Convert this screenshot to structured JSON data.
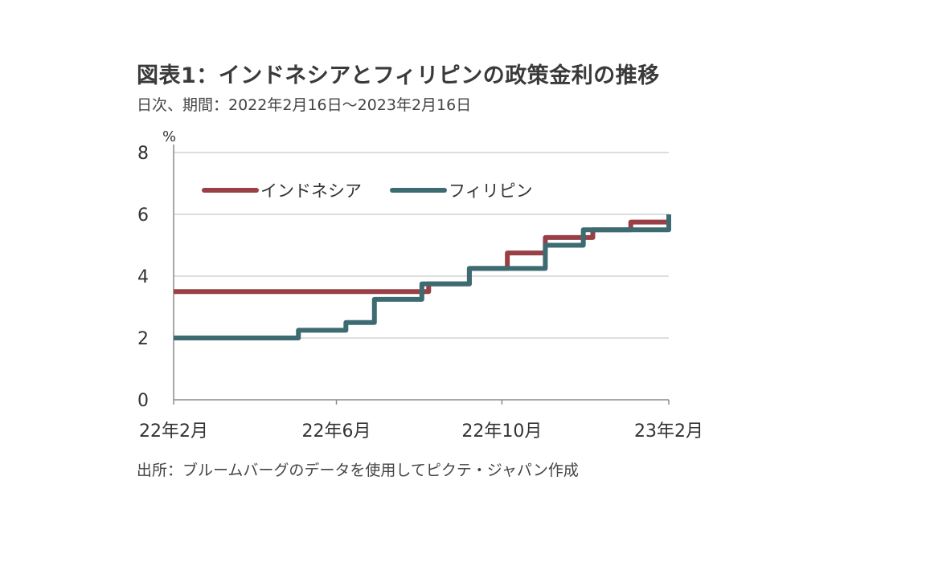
{
  "chart_data": {
    "type": "line",
    "title": "図表1：インドネシアとフィリピンの政策金利の推移",
    "subtitle": "日次、期間：2022年2月16日～2023年2月16日",
    "source": "出所：ブルームバーグのデータを使用してピクテ・ジャパン作成",
    "ylabel": "%",
    "ylim": [
      0,
      8
    ],
    "yticks": [
      "0",
      "2",
      "4",
      "6",
      "8"
    ],
    "xlim": [
      "2022-02-16",
      "2023-02-16"
    ],
    "xticks": [
      {
        "date": "2022-02-16",
        "label": "22年2月"
      },
      {
        "date": "2022-06-16",
        "label": "22年6月"
      },
      {
        "date": "2022-10-16",
        "label": "22年10月"
      },
      {
        "date": "2023-02-16",
        "label": "23年2月"
      }
    ],
    "grid": true,
    "legend_position": "top-left",
    "step": true,
    "series": [
      {
        "name": "インドネシア",
        "color": "#984045",
        "x": [
          "2022-02-16",
          "2022-08-23",
          "2022-09-22",
          "2022-10-20",
          "2022-11-17",
          "2022-12-22",
          "2023-01-19",
          "2023-02-16"
        ],
        "y": [
          3.5,
          3.75,
          4.25,
          4.75,
          5.25,
          5.5,
          5.75,
          5.75
        ]
      },
      {
        "name": "フィリピン",
        "color": "#3d6b72",
        "x": [
          "2022-02-16",
          "2022-05-19",
          "2022-06-23",
          "2022-07-14",
          "2022-08-18",
          "2022-09-22",
          "2022-11-17",
          "2022-12-15",
          "2023-02-16"
        ],
        "y": [
          2.0,
          2.25,
          2.5,
          3.25,
          3.75,
          4.25,
          5.0,
          5.5,
          6.0
        ]
      }
    ]
  }
}
